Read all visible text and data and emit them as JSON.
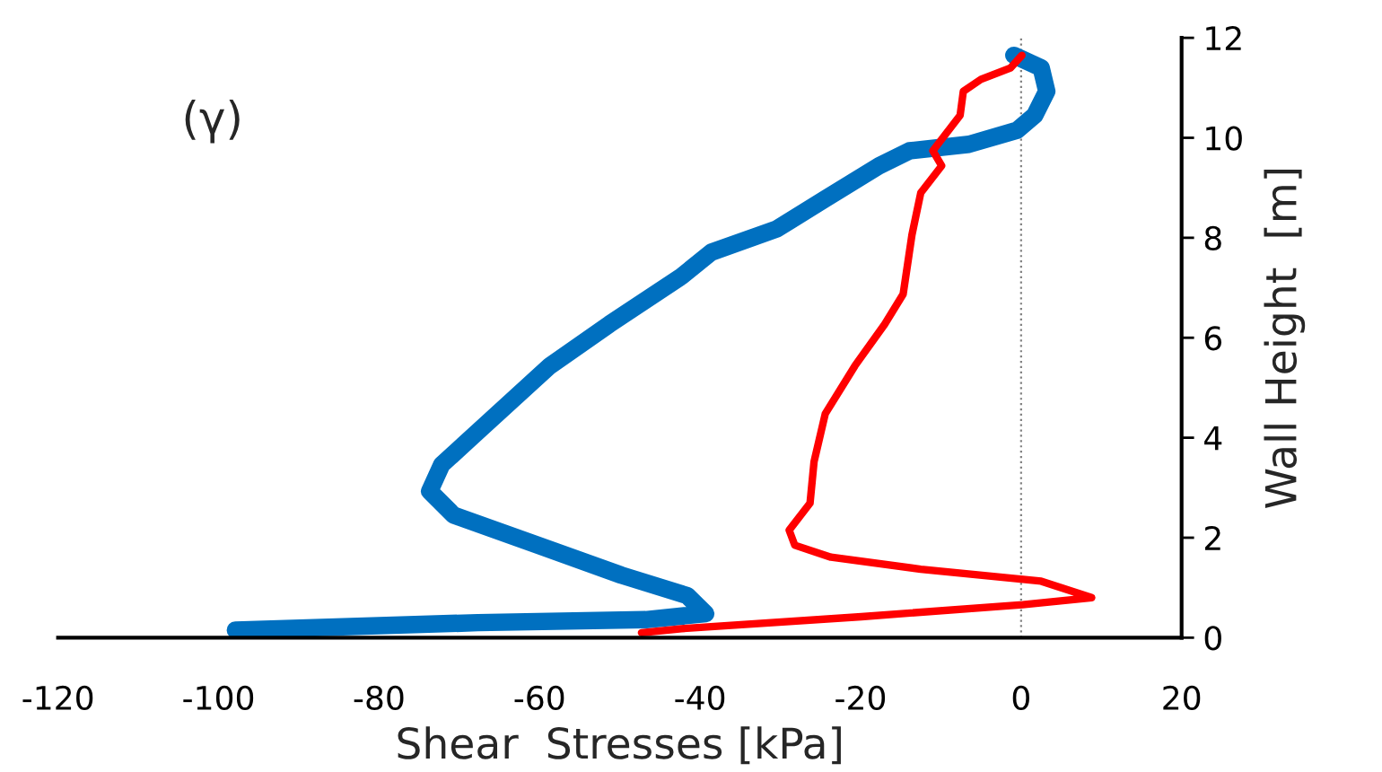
{
  "chart_data": {
    "type": "line",
    "xlabel": "Shear  Stresses [kPa]",
    "ylabel": "Wall Height  [m]",
    "annotations": [
      "(γ)"
    ],
    "xlim": [
      -120,
      20
    ],
    "xticks": [
      -120,
      -100,
      -80,
      -60,
      -40,
      -20,
      0,
      20
    ],
    "ylim": [
      0,
      12
    ],
    "yticks": [
      0,
      2,
      4,
      6,
      8,
      10,
      12
    ],
    "grid": false,
    "legend": false,
    "marker": "none",
    "line_style": "solid",
    "ref_lines": [
      {
        "axis": "x",
        "value": 0,
        "color": "#808080",
        "line_style": "dotted"
      }
    ],
    "series": [
      {
        "color": "#0070c0",
        "x": [
          -97.9,
          -67.7,
          -46.8,
          -39.3,
          -41.6,
          -49.8,
          -60.2,
          -70.7,
          -73.7,
          -72.2,
          -67.7,
          -58.7,
          -51.3,
          -42.3,
          -38.6,
          -30.4,
          -24.4,
          -17.7,
          -13.9,
          -6.5,
          -0.5,
          1.7,
          3.2,
          2.5,
          -0.9
        ],
        "values": [
          0.15,
          0.3,
          0.36,
          0.48,
          0.84,
          1.25,
          1.85,
          2.45,
          2.93,
          3.46,
          4.12,
          5.44,
          6.27,
          7.23,
          7.71,
          8.18,
          8.78,
          9.44,
          9.74,
          9.87,
          10.15,
          10.45,
          10.93,
          11.4,
          11.65
        ]
      },
      {
        "color": "#ff0000",
        "x": [
          -47.3,
          -42.3,
          -19.9,
          0.2,
          8.8,
          2.5,
          -12.5,
          -23.7,
          -28.2,
          -28.9,
          -26.3,
          -25.8,
          -24.4,
          -20.7,
          -17.0,
          -14.7,
          -13.6,
          -12.5,
          -9.9,
          -11.0,
          -7.6,
          -7.2,
          -5.0,
          -1.3,
          0.1
        ],
        "values": [
          0.1,
          0.18,
          0.42,
          0.66,
          0.8,
          1.13,
          1.37,
          1.61,
          1.85,
          2.15,
          2.69,
          3.52,
          4.48,
          5.44,
          6.27,
          6.87,
          8.06,
          8.9,
          9.44,
          9.74,
          10.45,
          10.93,
          11.17,
          11.4,
          11.65
        ]
      }
    ]
  }
}
